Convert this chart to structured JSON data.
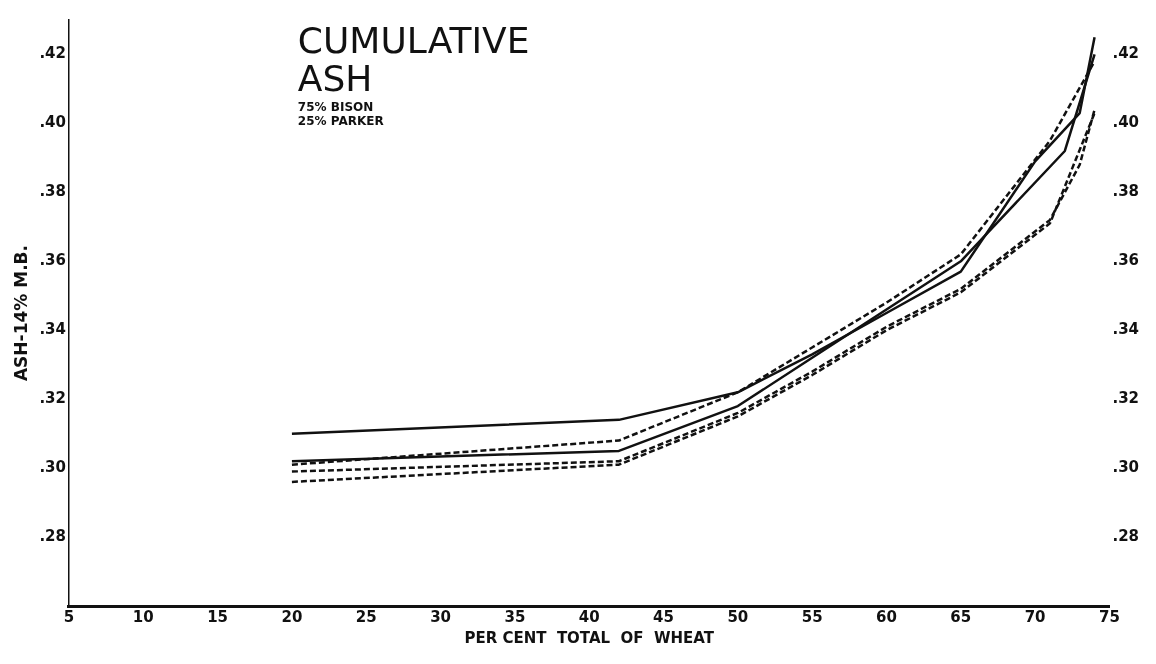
{
  "chart_data": {
    "type": "line",
    "title": "CUMULATIVE ASH",
    "subtitle": "75% BISON\n25% PARKER",
    "xlabel": "PER CENT  TOTAL  OF  WHEAT",
    "ylabel": "ASH-14% M.B.",
    "series": [
      {
        "color": "#111111",
        "line_style": "solid",
        "x": [
          20,
          42,
          50,
          55,
          60,
          65,
          70,
          73,
          74
        ],
        "values": [
          0.31,
          0.314,
          0.322,
          0.333,
          0.345,
          0.357,
          0.389,
          0.403,
          0.425
        ]
      },
      {
        "color": "#111111",
        "line_style": "solid",
        "x": [
          20,
          42,
          50,
          55,
          60,
          65,
          72,
          74
        ],
        "values": [
          0.302,
          0.305,
          0.318,
          0.332,
          0.346,
          0.36,
          0.392,
          0.42
        ]
      },
      {
        "color": "#111111",
        "line_style": "dashed",
        "x": [
          20,
          42,
          50,
          55,
          60,
          65,
          71,
          74
        ],
        "values": [
          0.301,
          0.308,
          0.322,
          0.335,
          0.348,
          0.362,
          0.395,
          0.418
        ]
      },
      {
        "color": "#111111",
        "line_style": "dashed",
        "x": [
          20,
          42,
          50,
          55,
          60,
          65,
          71,
          73,
          74
        ],
        "values": [
          0.299,
          0.302,
          0.316,
          0.328,
          0.341,
          0.352,
          0.372,
          0.388,
          0.404
        ]
      },
      {
        "color": "#111111",
        "line_style": "dashed",
        "x": [
          20,
          42,
          50,
          55,
          60,
          65,
          71,
          74
        ],
        "values": [
          0.296,
          0.301,
          0.315,
          0.327,
          0.34,
          0.351,
          0.371,
          0.403
        ]
      }
    ],
    "xlim": [
      5,
      75
    ],
    "xticks": [
      5,
      10,
      15,
      20,
      25,
      30,
      35,
      40,
      45,
      50,
      55,
      60,
      65,
      70,
      75
    ],
    "ylim": [
      0.26,
      0.43
    ],
    "yticks": [
      {
        "value": 0.28,
        "label": ".28"
      },
      {
        "value": 0.3,
        "label": ".30"
      },
      {
        "value": 0.32,
        "label": ".32"
      },
      {
        "value": 0.34,
        "label": ".34"
      },
      {
        "value": 0.36,
        "label": ".36"
      },
      {
        "value": 0.38,
        "label": ".38"
      },
      {
        "value": 0.4,
        "label": ".40"
      },
      {
        "value": 0.42,
        "label": ".42"
      }
    ],
    "y2lim": [
      0.26,
      0.43
    ],
    "y2ticks": [
      {
        "value": 0.28,
        "label": ".28"
      },
      {
        "value": 0.3,
        "label": ".30"
      },
      {
        "value": 0.32,
        "label": ".32"
      },
      {
        "value": 0.34,
        "label": ".34"
      },
      {
        "value": 0.36,
        "label": ".36"
      },
      {
        "value": 0.38,
        "label": ".38"
      },
      {
        "value": 0.4,
        "label": ".40"
      },
      {
        "value": 0.42,
        "label": ".42"
      }
    ],
    "grid": false,
    "legend": false,
    "marker": "none"
  }
}
